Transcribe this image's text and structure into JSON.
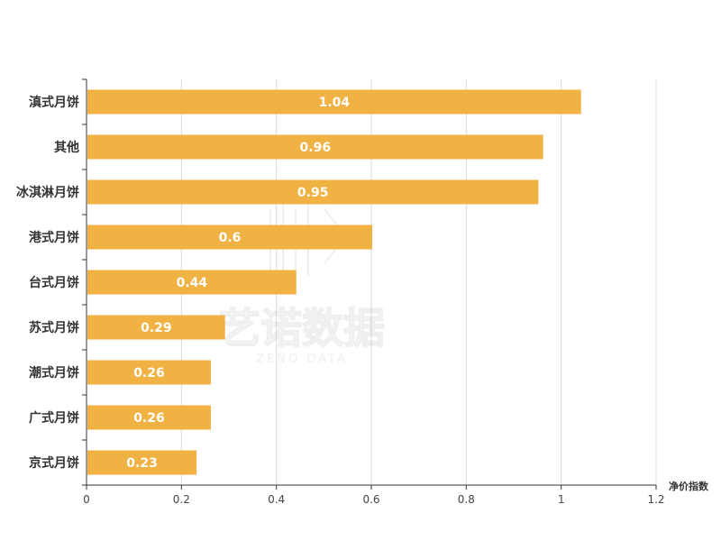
{
  "chart_data": {
    "type": "bar",
    "orientation": "horizontal",
    "categories": [
      "滇式月饼",
      "其他",
      "冰淇淋月饼",
      "港式月饼",
      "台式月饼",
      "苏式月饼",
      "潮式月饼",
      "广式月饼",
      "京式月饼"
    ],
    "values": [
      1.04,
      0.96,
      0.95,
      0.6,
      0.44,
      0.29,
      0.26,
      0.26,
      0.23
    ],
    "data_labels": [
      "1.04",
      "0.96",
      "0.95",
      "0.6",
      "0.44",
      "0.29",
      "0.26",
      "0.26",
      "0.23"
    ],
    "xlabel": "净价指数",
    "xlim": [
      0,
      1.2
    ],
    "xticks": [
      0,
      0.2,
      0.4,
      0.6,
      0.8,
      1,
      1.2
    ],
    "xtick_labels": [
      "0",
      "0.2",
      "0.4",
      "0.6",
      "0.8",
      "1",
      "1.2"
    ],
    "grid": "vertical",
    "bar_color": "#F0B242",
    "grid_color": "#D9D9D9",
    "watermark": {
      "cn": "艺诺数据",
      "en": "ZENO DATA"
    }
  }
}
